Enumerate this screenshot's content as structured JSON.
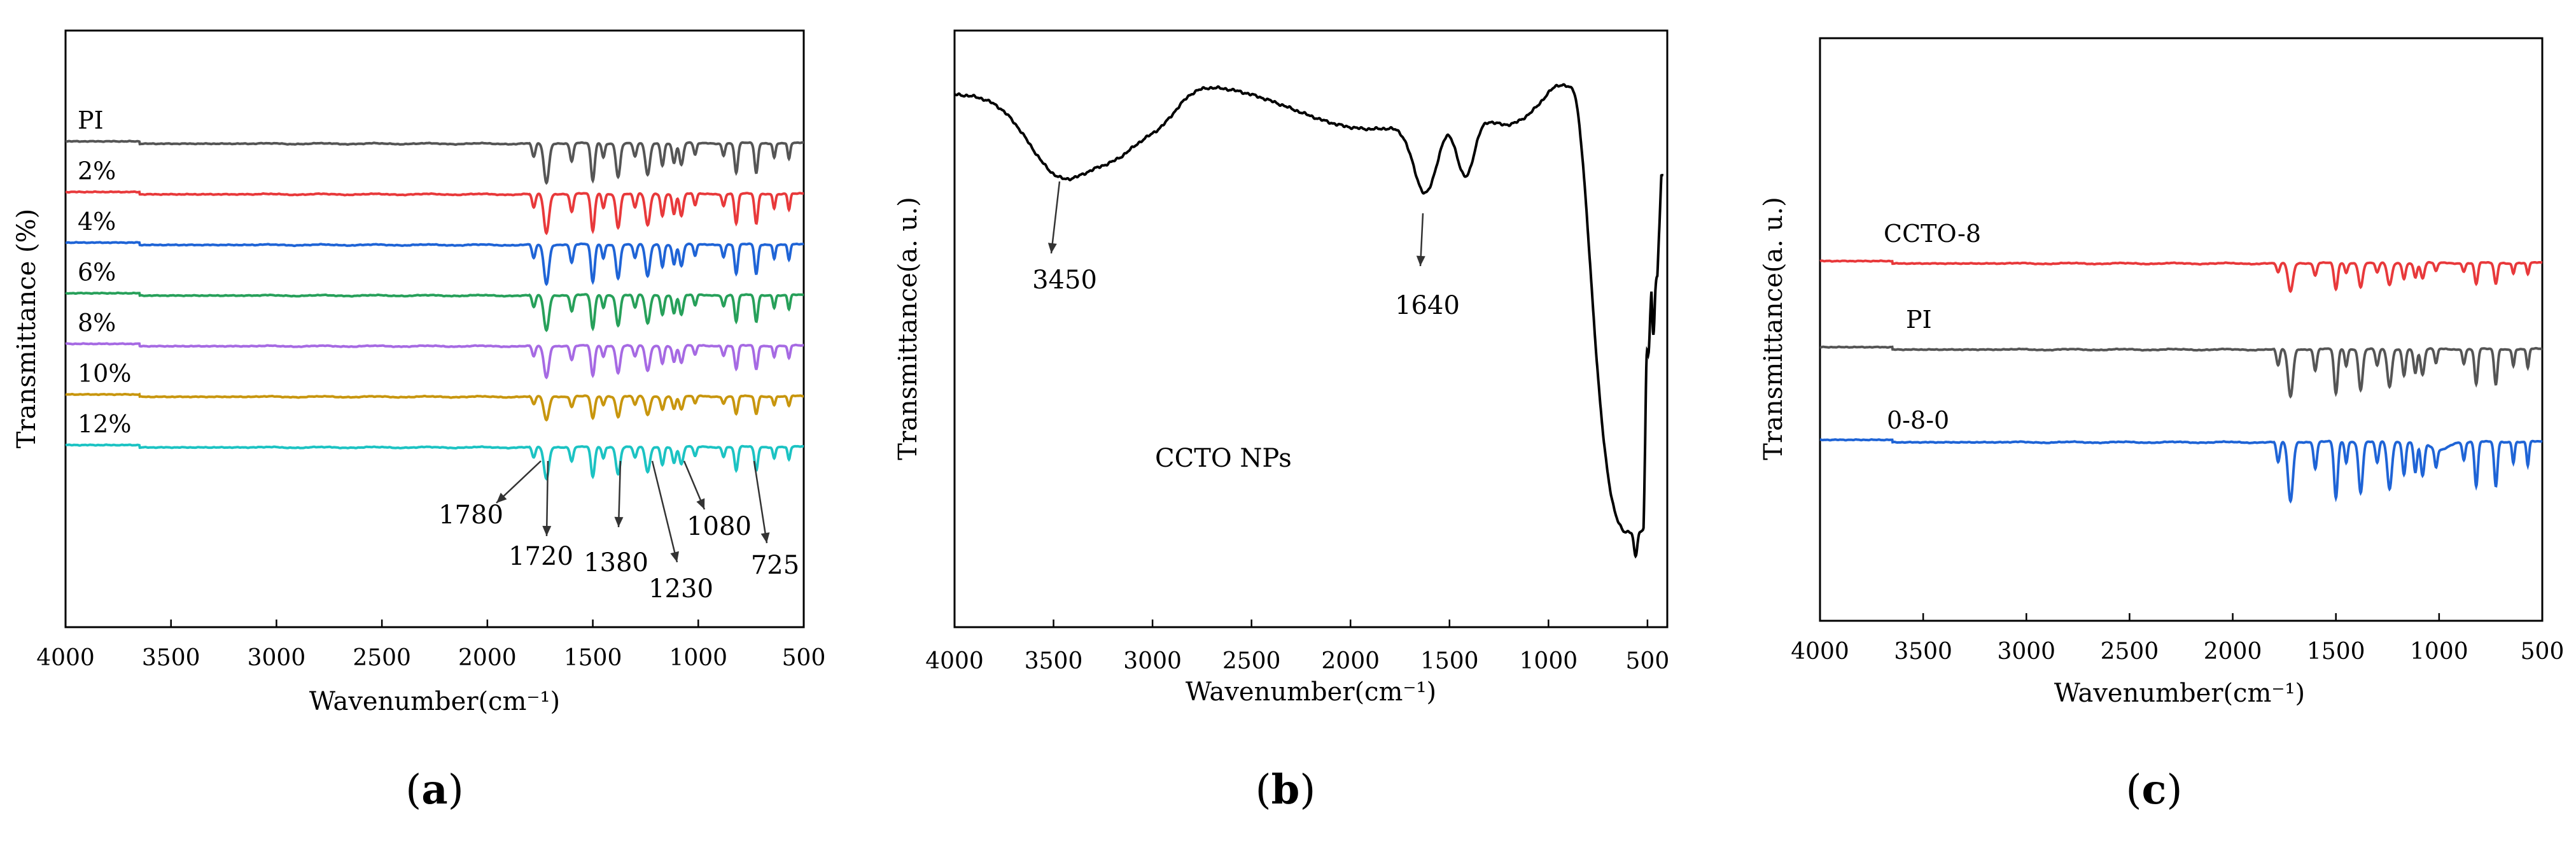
{
  "chart_data": [
    {
      "type": "line",
      "panel": "a",
      "caption_open": "(",
      "caption_letter": "a",
      "caption_close": ")",
      "xlabel": "Wavenumber(cm⁻¹)",
      "ylabel": "Transmittance (%)",
      "xlim": [
        4000,
        500
      ],
      "xticks": [
        4000,
        3500,
        3000,
        2500,
        2000,
        1500,
        1000,
        500
      ],
      "series": [
        {
          "name": "PI",
          "color": "#555555",
          "offset": 0.0,
          "scale": 1.0
        },
        {
          "name": "2%",
          "color": "#e8393b",
          "offset": 1.0,
          "scale": 1.0
        },
        {
          "name": "4%",
          "color": "#1f64d6",
          "offset": 2.0,
          "scale": 1.0
        },
        {
          "name": "6%",
          "color": "#27a05a",
          "offset": 3.0,
          "scale": 0.9
        },
        {
          "name": "8%",
          "color": "#a66ae3",
          "offset": 4.0,
          "scale": 0.8
        },
        {
          "name": "10%",
          "color": "#c8960e",
          "offset": 5.0,
          "scale": 0.6
        },
        {
          "name": "12%",
          "color": "#1cc3c3",
          "offset": 6.0,
          "scale": 0.8
        }
      ],
      "annotations": [
        {
          "label": "1780",
          "x": 1780
        },
        {
          "label": "1720",
          "x": 1720
        },
        {
          "label": "1380",
          "x": 1380
        },
        {
          "label": "1230",
          "x": 1230
        },
        {
          "label": "1080",
          "x": 1080
        },
        {
          "label": "725",
          "x": 725
        }
      ]
    },
    {
      "type": "line",
      "panel": "b",
      "caption_open": "(",
      "caption_letter": "b",
      "caption_close": ")",
      "title": "CCTO NPs",
      "xlabel": "Wavenumber(cm⁻¹)",
      "ylabel": "Transmittance(a. u.)",
      "xlim": [
        4000,
        400
      ],
      "xticks": [
        4000,
        3500,
        3000,
        2500,
        2000,
        1500,
        1000,
        500
      ],
      "series": [
        {
          "name": "CCTO NPs",
          "color": "#000000"
        }
      ],
      "annotations": [
        {
          "label": "3450",
          "x": 3450
        },
        {
          "label": "1640",
          "x": 1640
        }
      ]
    },
    {
      "type": "line",
      "panel": "c",
      "caption_open": "(",
      "caption_letter": "c",
      "caption_close": ")",
      "xlabel": "Wavenumber(cm⁻¹)",
      "ylabel": "Transmittance(a. u.)",
      "xlim": [
        4000,
        500
      ],
      "xticks": [
        4000,
        3500,
        3000,
        2500,
        2000,
        1500,
        1000,
        500
      ],
      "series": [
        {
          "name": "CCTO-8",
          "color": "#e8393b",
          "offset": 0.0,
          "scale": 0.8
        },
        {
          "name": "PI",
          "color": "#555555",
          "offset": 1.3,
          "scale": 1.35
        },
        {
          "name": "0-8-0",
          "color": "#1f64d6",
          "offset": 2.7,
          "scale": 1.7
        }
      ]
    }
  ]
}
